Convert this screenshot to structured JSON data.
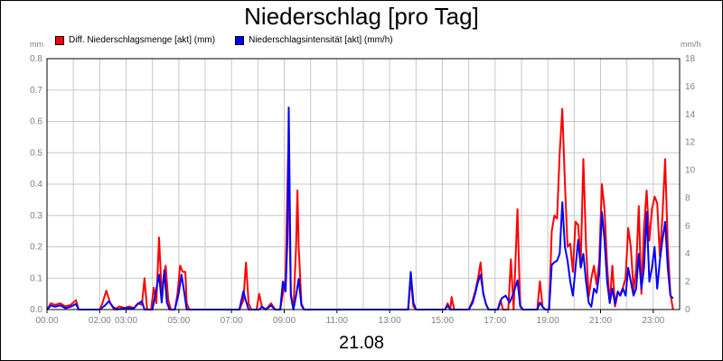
{
  "chart_data": {
    "type": "line",
    "title": "Niederschlag [pro Tag]",
    "xlabel": "21.08",
    "y_left": {
      "unit": "mm",
      "ylim": [
        0,
        0.8
      ],
      "ticks": [
        "0.0",
        "0.1",
        "0.2",
        "0.3",
        "0.4",
        "0.5",
        "0.6",
        "0.7",
        "0.8"
      ]
    },
    "y_right": {
      "unit": "mm/h",
      "ylim": [
        0,
        18
      ],
      "ticks": [
        "0",
        "2",
        "4",
        "6",
        "8",
        "10",
        "12",
        "14",
        "16",
        "18"
      ]
    },
    "x_range_hours": [
      0,
      24
    ],
    "x_ticks": [
      {
        "h": 0,
        "label": "00:00"
      },
      {
        "h": 2,
        "label": "02:00"
      },
      {
        "h": 3,
        "label": "03:00"
      },
      {
        "h": 5,
        "label": "05:00"
      },
      {
        "h": 7,
        "label": "07:00"
      },
      {
        "h": 9,
        "label": "09:00"
      },
      {
        "h": 11,
        "label": "11:00"
      },
      {
        "h": 13,
        "label": "13:00"
      },
      {
        "h": 15,
        "label": "15:00"
      },
      {
        "h": 17,
        "label": "17:00"
      },
      {
        "h": 19,
        "label": "19:00"
      },
      {
        "h": 21,
        "label": "21:00"
      },
      {
        "h": 23,
        "label": "23:00"
      }
    ],
    "grid": true,
    "legend_position": "top-left",
    "series": [
      {
        "name": "Diff. Niederschlagsmenge [akt] (mm)",
        "color": "#ff0000",
        "axis": "left",
        "points": [
          [
            0,
            0
          ],
          [
            0.15,
            0.02
          ],
          [
            0.3,
            0.015
          ],
          [
            0.5,
            0.02
          ],
          [
            0.7,
            0.01
          ],
          [
            0.9,
            0.015
          ],
          [
            1.1,
            0.03
          ],
          [
            1.2,
            0
          ],
          [
            2.0,
            0
          ],
          [
            2.1,
            0.02
          ],
          [
            2.25,
            0.06
          ],
          [
            2.4,
            0.02
          ],
          [
            2.55,
            0
          ],
          [
            2.75,
            0.01
          ],
          [
            2.95,
            0.005
          ],
          [
            3.1,
            0.01
          ],
          [
            3.3,
            0.005
          ],
          [
            3.45,
            0.02
          ],
          [
            3.6,
            0.015
          ],
          [
            3.7,
            0.1
          ],
          [
            3.8,
            0
          ],
          [
            3.95,
            0
          ],
          [
            4.05,
            0.07
          ],
          [
            4.15,
            0.02
          ],
          [
            4.25,
            0.23
          ],
          [
            4.35,
            0.05
          ],
          [
            4.45,
            0.12
          ],
          [
            4.5,
            0.14
          ],
          [
            4.6,
            0.03
          ],
          [
            4.7,
            0
          ],
          [
            4.85,
            0
          ],
          [
            4.95,
            0.05
          ],
          [
            5.05,
            0.14
          ],
          [
            5.15,
            0.12
          ],
          [
            5.25,
            0.12
          ],
          [
            5.3,
            0.02
          ],
          [
            5.4,
            0
          ],
          [
            7.3,
            0
          ],
          [
            7.45,
            0.03
          ],
          [
            7.55,
            0.15
          ],
          [
            7.65,
            0.02
          ],
          [
            7.75,
            0
          ],
          [
            7.95,
            0
          ],
          [
            8.05,
            0.05
          ],
          [
            8.15,
            0.01
          ],
          [
            8.3,
            0
          ],
          [
            8.5,
            0.02
          ],
          [
            8.65,
            0
          ],
          [
            8.85,
            0
          ],
          [
            8.95,
            0.05
          ],
          [
            9.05,
            0.1
          ],
          [
            9.1,
            0.3
          ],
          [
            9.15,
            0.5
          ],
          [
            9.25,
            0.05
          ],
          [
            9.35,
            0
          ],
          [
            9.45,
            0.2
          ],
          [
            9.5,
            0.38
          ],
          [
            9.55,
            0.2
          ],
          [
            9.65,
            0.02
          ],
          [
            9.75,
            0
          ],
          [
            13.7,
            0
          ],
          [
            13.8,
            0.1
          ],
          [
            13.9,
            0.01
          ],
          [
            14.0,
            0
          ],
          [
            15.1,
            0
          ],
          [
            15.2,
            0.02
          ],
          [
            15.3,
            0
          ],
          [
            15.35,
            0.04
          ],
          [
            15.45,
            0
          ],
          [
            16.0,
            0
          ],
          [
            16.15,
            0.03
          ],
          [
            16.25,
            0.06
          ],
          [
            16.35,
            0.1
          ],
          [
            16.45,
            0.15
          ],
          [
            16.55,
            0.05
          ],
          [
            16.65,
            0.02
          ],
          [
            16.75,
            0
          ],
          [
            17.1,
            0
          ],
          [
            17.2,
            0.03
          ],
          [
            17.3,
            0
          ],
          [
            17.5,
            0
          ],
          [
            17.6,
            0.16
          ],
          [
            17.7,
            0
          ],
          [
            17.85,
            0.32
          ],
          [
            17.95,
            0.01
          ],
          [
            18.05,
            0
          ],
          [
            18.6,
            0
          ],
          [
            18.7,
            0.09
          ],
          [
            18.8,
            0.01
          ],
          [
            18.9,
            0
          ],
          [
            19.05,
            0
          ],
          [
            19.15,
            0.25
          ],
          [
            19.25,
            0.3
          ],
          [
            19.35,
            0.29
          ],
          [
            19.45,
            0.5
          ],
          [
            19.55,
            0.64
          ],
          [
            19.65,
            0.4
          ],
          [
            19.75,
            0.2
          ],
          [
            19.85,
            0.21
          ],
          [
            19.95,
            0.12
          ],
          [
            20.05,
            0.28
          ],
          [
            20.15,
            0.27
          ],
          [
            20.25,
            0.15
          ],
          [
            20.35,
            0.48
          ],
          [
            20.45,
            0.2
          ],
          [
            20.55,
            0.04
          ],
          [
            20.65,
            0.1
          ],
          [
            20.75,
            0.14
          ],
          [
            20.85,
            0.08
          ],
          [
            20.95,
            0.15
          ],
          [
            21.05,
            0.4
          ],
          [
            21.15,
            0.32
          ],
          [
            21.25,
            0.14
          ],
          [
            21.35,
            0.02
          ],
          [
            21.45,
            0.14
          ],
          [
            21.55,
            0.01
          ],
          [
            21.65,
            0.05
          ],
          [
            21.75,
            0.05
          ],
          [
            21.85,
            0.07
          ],
          [
            21.95,
            0.1
          ],
          [
            22.05,
            0.26
          ],
          [
            22.15,
            0.2
          ],
          [
            22.25,
            0.06
          ],
          [
            22.35,
            0.13
          ],
          [
            22.45,
            0.33
          ],
          [
            22.55,
            0.05
          ],
          [
            22.65,
            0.26
          ],
          [
            22.75,
            0.38
          ],
          [
            22.85,
            0.22
          ],
          [
            22.95,
            0.32
          ],
          [
            23.05,
            0.36
          ],
          [
            23.15,
            0.34
          ],
          [
            23.25,
            0.17
          ],
          [
            23.35,
            0.3
          ],
          [
            23.45,
            0.48
          ],
          [
            23.55,
            0.2
          ],
          [
            23.65,
            0.05
          ],
          [
            23.75,
            0
          ]
        ]
      },
      {
        "name": "Niederschlagsintensität [akt] (mm/h)",
        "color": "#0000ff",
        "axis": "right",
        "points": [
          [
            0,
            0
          ],
          [
            0.15,
            0.3
          ],
          [
            0.3,
            0.2
          ],
          [
            0.5,
            0.3
          ],
          [
            0.7,
            0.1
          ],
          [
            0.9,
            0.2
          ],
          [
            1.1,
            0.4
          ],
          [
            1.2,
            0
          ],
          [
            2.0,
            0
          ],
          [
            2.2,
            0.3
          ],
          [
            2.35,
            0.6
          ],
          [
            2.5,
            0.2
          ],
          [
            2.65,
            0
          ],
          [
            2.9,
            0.1
          ],
          [
            3.3,
            0.1
          ],
          [
            3.45,
            0.4
          ],
          [
            3.6,
            0.6
          ],
          [
            3.7,
            0
          ],
          [
            4.0,
            0
          ],
          [
            4.1,
            1.0
          ],
          [
            4.25,
            2.5
          ],
          [
            4.35,
            0.5
          ],
          [
            4.45,
            2.8
          ],
          [
            4.55,
            0.5
          ],
          [
            4.65,
            0
          ],
          [
            4.85,
            0
          ],
          [
            5.0,
            1.2
          ],
          [
            5.1,
            2.5
          ],
          [
            5.2,
            1.3
          ],
          [
            5.3,
            0
          ],
          [
            7.3,
            0
          ],
          [
            7.45,
            1.3
          ],
          [
            7.55,
            0.6
          ],
          [
            7.65,
            0
          ],
          [
            8.05,
            0
          ],
          [
            8.15,
            0.2
          ],
          [
            8.3,
            0
          ],
          [
            8.5,
            0.3
          ],
          [
            8.65,
            0
          ],
          [
            8.85,
            0
          ],
          [
            8.95,
            2.0
          ],
          [
            9.05,
            1.3
          ],
          [
            9.12,
            5.0
          ],
          [
            9.17,
            14.5
          ],
          [
            9.25,
            1.0
          ],
          [
            9.35,
            0
          ],
          [
            9.45,
            1.0
          ],
          [
            9.55,
            2.2
          ],
          [
            9.65,
            0.3
          ],
          [
            9.75,
            0
          ],
          [
            13.7,
            0
          ],
          [
            13.8,
            2.7
          ],
          [
            13.9,
            0.5
          ],
          [
            14.0,
            0
          ],
          [
            15.1,
            0
          ],
          [
            15.2,
            0.3
          ],
          [
            15.3,
            0
          ],
          [
            16.0,
            0
          ],
          [
            16.15,
            0.5
          ],
          [
            16.25,
            1.2
          ],
          [
            16.35,
            2.0
          ],
          [
            16.45,
            2.5
          ],
          [
            16.55,
            1.2
          ],
          [
            16.65,
            0.4
          ],
          [
            16.75,
            0
          ],
          [
            17.1,
            0
          ],
          [
            17.25,
            0.8
          ],
          [
            17.4,
            1.0
          ],
          [
            17.55,
            0.5
          ],
          [
            17.7,
            1.2
          ],
          [
            17.85,
            2.1
          ],
          [
            17.95,
            0.3
          ],
          [
            18.05,
            0
          ],
          [
            18.6,
            0
          ],
          [
            18.7,
            0.5
          ],
          [
            18.8,
            0.2
          ],
          [
            18.9,
            0
          ],
          [
            19.05,
            0
          ],
          [
            19.15,
            3.2
          ],
          [
            19.25,
            3.4
          ],
          [
            19.35,
            3.5
          ],
          [
            19.45,
            4.0
          ],
          [
            19.55,
            7.7
          ],
          [
            19.65,
            4.5
          ],
          [
            19.75,
            3.5
          ],
          [
            19.85,
            2.0
          ],
          [
            19.95,
            1.0
          ],
          [
            20.05,
            3.0
          ],
          [
            20.15,
            5.0
          ],
          [
            20.25,
            3.0
          ],
          [
            20.35,
            4.0
          ],
          [
            20.45,
            2.0
          ],
          [
            20.55,
            0.5
          ],
          [
            20.65,
            0.2
          ],
          [
            20.75,
            1.5
          ],
          [
            20.85,
            1.2
          ],
          [
            20.95,
            2.5
          ],
          [
            21.05,
            7.0
          ],
          [
            21.15,
            5.0
          ],
          [
            21.25,
            2.0
          ],
          [
            21.35,
            0.5
          ],
          [
            21.45,
            1.5
          ],
          [
            21.55,
            0.4
          ],
          [
            21.65,
            1.3
          ],
          [
            21.75,
            1.0
          ],
          [
            21.85,
            1.5
          ],
          [
            21.95,
            1.0
          ],
          [
            22.05,
            3.0
          ],
          [
            22.15,
            2.0
          ],
          [
            22.25,
            1.0
          ],
          [
            22.35,
            1.5
          ],
          [
            22.45,
            4.0
          ],
          [
            22.55,
            1.5
          ],
          [
            22.65,
            3.0
          ],
          [
            22.75,
            7.0
          ],
          [
            22.85,
            2.0
          ],
          [
            22.95,
            3.0
          ],
          [
            23.05,
            4.5
          ],
          [
            23.15,
            1.5
          ],
          [
            23.25,
            3.5
          ],
          [
            23.35,
            5.0
          ],
          [
            23.45,
            6.3
          ],
          [
            23.55,
            3.0
          ],
          [
            23.65,
            1.0
          ],
          [
            23.75,
            0.8
          ]
        ]
      }
    ]
  }
}
